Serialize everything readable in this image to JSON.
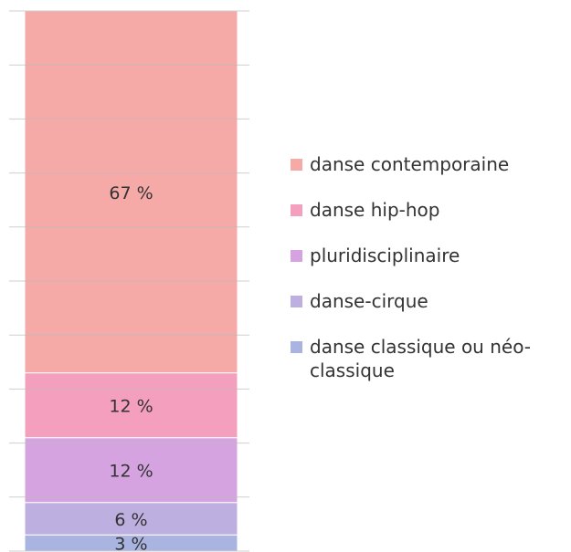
{
  "chart_data": {
    "type": "stacked-bar",
    "series": [
      {
        "name": "danse contemporaine",
        "color": "#f5aaa8",
        "values": [
          67
        ],
        "value_labels": [
          "67 %"
        ]
      },
      {
        "name": "danse hip-hop",
        "color": "#f49fbd",
        "values": [
          12
        ],
        "value_labels": [
          "12 %"
        ]
      },
      {
        "name": "pluridisciplinaire",
        "color": "#d5a4e0",
        "values": [
          12
        ],
        "value_labels": [
          "12 %"
        ]
      },
      {
        "name": "danse-cirque",
        "color": "#bdb0e1",
        "values": [
          6
        ],
        "value_labels": [
          "6 %"
        ]
      },
      {
        "name": "danse classique ou néo-classique",
        "color": "#aab4e1",
        "values": [
          3
        ],
        "value_labels": [
          "3 %"
        ]
      }
    ],
    "ylim": [
      0,
      100
    ],
    "yticks": [
      0,
      10,
      20,
      30,
      40,
      50,
      60,
      70,
      80,
      90,
      100
    ],
    "grid": true
  }
}
